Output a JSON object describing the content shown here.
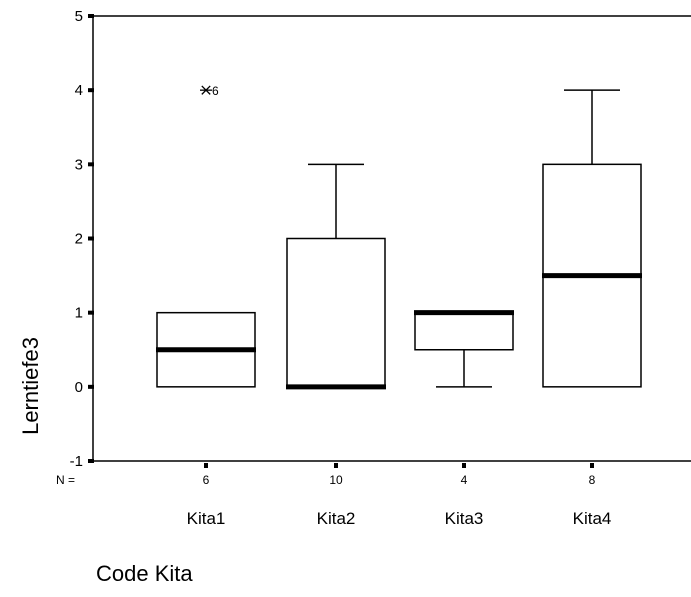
{
  "chart_data": {
    "type": "boxplot",
    "title": "",
    "xlabel": "Code Kita",
    "ylabel": "Lerntiefe3",
    "ylim": [
      -1,
      5
    ],
    "yticks": [
      "-1",
      "0",
      "1",
      "2",
      "3",
      "4",
      "5"
    ],
    "n_label": "N =",
    "categories": [
      "Kita1",
      "Kita2",
      "Kita3",
      "Kita4"
    ],
    "n": [
      "6",
      "10",
      "4",
      "8"
    ],
    "boxes": [
      {
        "min": 0,
        "q1": 0,
        "median": 0.5,
        "q3": 1,
        "max": 1,
        "outliers": [
          {
            "value": 4,
            "label": "6",
            "marker": "*"
          }
        ]
      },
      {
        "min": 0,
        "q1": 0,
        "median": 0,
        "q3": 2,
        "max": 3,
        "outliers": []
      },
      {
        "min": 0,
        "q1": 0.5,
        "median": 1,
        "q3": 1,
        "max": 1,
        "outliers": []
      },
      {
        "min": 0,
        "q1": 0,
        "median": 1.5,
        "q3": 3,
        "max": 4,
        "outliers": []
      }
    ]
  }
}
